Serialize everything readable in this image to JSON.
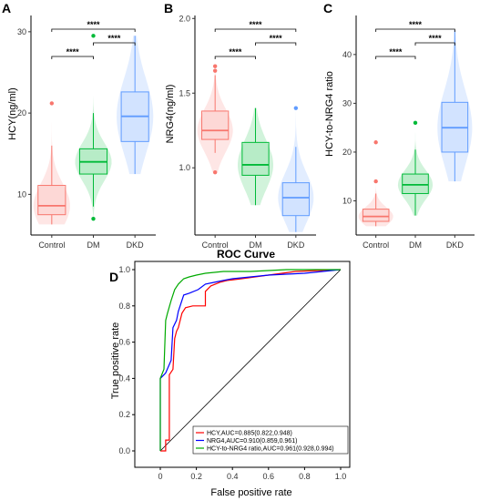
{
  "colors": {
    "control": "#F8766D",
    "dm": "#00BA38",
    "dkd": "#619CFF",
    "hcy_line": "#FF0000",
    "nrg4_line": "#0000FF",
    "ratio_line": "#00AA00"
  },
  "chart_data": [
    {
      "panel": "A",
      "type": "boxplot",
      "ylabel": "HCY(ng/ml)",
      "categories": [
        "Control",
        "DM",
        "DKD"
      ],
      "ylim": [
        5,
        32
      ],
      "yticks": [
        10,
        20,
        30
      ],
      "boxes": [
        {
          "name": "Control",
          "q1": 7.5,
          "median": 8.6,
          "q3": 11.1,
          "whisker_low": 6.3,
          "whisker_high": 16.0,
          "outliers": [
            21.2
          ]
        },
        {
          "name": "DM",
          "q1": 12.5,
          "median": 14.0,
          "q3": 15.6,
          "whisker_low": 8.5,
          "whisker_high": 20.0,
          "outliers": [
            29.5,
            7.0
          ]
        },
        {
          "name": "DKD",
          "q1": 16.5,
          "median": 19.6,
          "q3": 22.6,
          "whisker_low": 12.5,
          "whisker_high": 29.5,
          "outliers": []
        }
      ],
      "significance": [
        {
          "pair": [
            "Control",
            "DKD"
          ],
          "label": "****"
        },
        {
          "pair": [
            "Control",
            "DM"
          ],
          "label": "****"
        },
        {
          "pair": [
            "DM",
            "DKD"
          ],
          "label": "****"
        }
      ]
    },
    {
      "panel": "B",
      "type": "boxplot",
      "ylabel": "NRG4(ng/ml)",
      "categories": [
        "Control",
        "DM",
        "DKD"
      ],
      "ylim": [
        0.55,
        2.02
      ],
      "yticks": [
        1.0,
        1.5,
        2.0
      ],
      "boxes": [
        {
          "name": "Control",
          "q1": 1.19,
          "median": 1.25,
          "q3": 1.38,
          "whisker_low": 1.1,
          "whisker_high": 1.62,
          "outliers": [
            1.68,
            1.65,
            0.97
          ]
        },
        {
          "name": "DM",
          "q1": 0.95,
          "median": 1.02,
          "q3": 1.17,
          "whisker_low": 0.75,
          "whisker_high": 1.4,
          "outliers": []
        },
        {
          "name": "DKD",
          "q1": 0.68,
          "median": 0.8,
          "q3": 0.9,
          "whisker_low": 0.57,
          "whisker_high": 1.14,
          "outliers": [
            1.4
          ]
        }
      ],
      "significance": [
        {
          "pair": [
            "Control",
            "DKD"
          ],
          "label": "****"
        },
        {
          "pair": [
            "Control",
            "DM"
          ],
          "label": "****"
        },
        {
          "pair": [
            "DM",
            "DKD"
          ],
          "label": "****"
        }
      ]
    },
    {
      "panel": "C",
      "type": "boxplot",
      "ylabel": "HCY-to-NRG4 ratio",
      "categories": [
        "Control",
        "DM",
        "DKD"
      ],
      "ylim": [
        3,
        48
      ],
      "yticks": [
        10,
        20,
        30,
        40
      ],
      "boxes": [
        {
          "name": "Control",
          "q1": 5.8,
          "median": 6.8,
          "q3": 8.3,
          "whisker_low": 4.8,
          "whisker_high": 11.5,
          "outliers": [
            22.0,
            14.0
          ]
        },
        {
          "name": "DM",
          "q1": 11.5,
          "median": 13.3,
          "q3": 15.5,
          "whisker_low": 7.0,
          "whisker_high": 20.5,
          "outliers": [
            26.0
          ]
        },
        {
          "name": "DKD",
          "q1": 20.0,
          "median": 25.0,
          "q3": 30.2,
          "whisker_low": 14.0,
          "whisker_high": 45.0,
          "outliers": []
        }
      ],
      "significance": [
        {
          "pair": [
            "Control",
            "DKD"
          ],
          "label": "****"
        },
        {
          "pair": [
            "Control",
            "DM"
          ],
          "label": "****"
        },
        {
          "pair": [
            "DM",
            "DKD"
          ],
          "label": "****"
        }
      ]
    },
    {
      "panel": "D",
      "type": "line",
      "title": "ROC Curve",
      "xlabel": "False positive rate",
      "ylabel": "True positive rate",
      "xlim": [
        0,
        1
      ],
      "ylim": [
        0,
        1
      ],
      "xticks": [
        0,
        0.2,
        0.4,
        0.6,
        0.8,
        1.0
      ],
      "yticks": [
        0,
        0.2,
        0.4,
        0.6,
        0.8,
        1.0
      ],
      "legend_position": "bottom-right",
      "series": [
        {
          "name": "HCY,AUC=0.885(0.822,0.948)",
          "color": "#FF0000",
          "x": [
            0,
            0.03,
            0.03,
            0.05,
            0.05,
            0.07,
            0.08,
            0.09,
            0.1,
            0.12,
            0.14,
            0.18,
            0.25,
            0.25,
            0.28,
            0.33,
            0.37,
            0.45,
            0.6,
            0.75,
            1.0
          ],
          "y": [
            0,
            0,
            0.06,
            0.06,
            0.42,
            0.45,
            0.62,
            0.66,
            0.68,
            0.76,
            0.79,
            0.8,
            0.8,
            0.88,
            0.91,
            0.93,
            0.94,
            0.95,
            0.97,
            0.99,
            1.0
          ]
        },
        {
          "name": "NRG4,AUC=0.910(0.859,0.961)",
          "color": "#0000FF",
          "x": [
            0,
            0,
            0.02,
            0.03,
            0.06,
            0.07,
            0.09,
            0.1,
            0.13,
            0.16,
            0.21,
            0.25,
            0.3,
            0.35,
            0.4,
            0.5,
            0.6,
            0.8,
            1.0
          ],
          "y": [
            0,
            0.4,
            0.42,
            0.43,
            0.5,
            0.68,
            0.72,
            0.77,
            0.86,
            0.87,
            0.89,
            0.92,
            0.93,
            0.94,
            0.95,
            0.96,
            0.97,
            0.98,
            1.0
          ]
        },
        {
          "name": "HCY-to-NRG4 ratio,AUC=0.961(0.928,0.994)",
          "color": "#00AA00",
          "x": [
            0,
            0,
            0.02,
            0.03,
            0.04,
            0.06,
            0.08,
            0.1,
            0.13,
            0.16,
            0.2,
            0.25,
            0.35,
            0.5,
            0.7,
            0.9,
            1.0
          ],
          "y": [
            0,
            0.4,
            0.45,
            0.72,
            0.76,
            0.83,
            0.89,
            0.92,
            0.95,
            0.96,
            0.97,
            0.98,
            0.99,
            0.99,
            1.0,
            1.0,
            1.0
          ]
        }
      ]
    }
  ]
}
